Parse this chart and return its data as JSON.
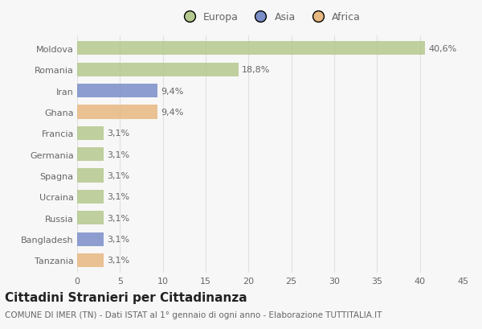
{
  "categories": [
    "Moldova",
    "Romania",
    "Iran",
    "Ghana",
    "Francia",
    "Germania",
    "Spagna",
    "Ucraina",
    "Russia",
    "Bangladesh",
    "Tanzania"
  ],
  "values": [
    40.6,
    18.8,
    9.4,
    9.4,
    3.1,
    3.1,
    3.1,
    3.1,
    3.1,
    3.1,
    3.1
  ],
  "labels": [
    "40,6%",
    "18,8%",
    "9,4%",
    "9,4%",
    "3,1%",
    "3,1%",
    "3,1%",
    "3,1%",
    "3,1%",
    "3,1%",
    "3,1%"
  ],
  "colors": [
    "#b5c98e",
    "#b5c98e",
    "#7b8ec8",
    "#e8b882",
    "#b5c98e",
    "#b5c98e",
    "#b5c98e",
    "#b5c98e",
    "#b5c98e",
    "#7b8ec8",
    "#e8b882"
  ],
  "legend_labels": [
    "Europa",
    "Asia",
    "Africa"
  ],
  "legend_colors": [
    "#b5c98e",
    "#7b8ec8",
    "#e8b882"
  ],
  "title": "Cittadini Stranieri per Cittadinanza",
  "subtitle": "COMUNE DI IMER (TN) - Dati ISTAT al 1° gennaio di ogni anno - Elaborazione TUTTITALIA.IT",
  "xlim": [
    0,
    45
  ],
  "xticks": [
    0,
    5,
    10,
    15,
    20,
    25,
    30,
    35,
    40,
    45
  ],
  "background_color": "#f7f7f7",
  "grid_color": "#e0e0e0",
  "bar_height": 0.65,
  "title_fontsize": 11,
  "subtitle_fontsize": 7.5,
  "label_fontsize": 8,
  "tick_fontsize": 8,
  "legend_fontsize": 9
}
